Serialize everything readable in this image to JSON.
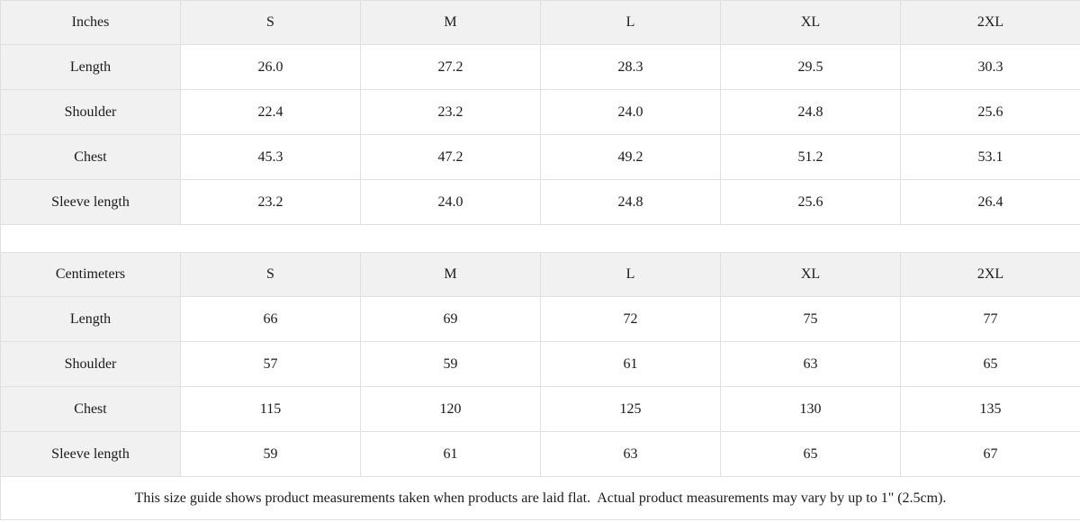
{
  "size_guide": {
    "tables": [
      {
        "unit_label": "Inches",
        "sizes": [
          "S",
          "M",
          "L",
          "XL",
          "2XL"
        ],
        "rows": [
          {
            "label": "Length",
            "values": [
              "26.0",
              "27.2",
              "28.3",
              "29.5",
              "30.3"
            ]
          },
          {
            "label": "Shoulder",
            "values": [
              "22.4",
              "23.2",
              "24.0",
              "24.8",
              "25.6"
            ]
          },
          {
            "label": "Chest",
            "values": [
              "45.3",
              "47.2",
              "49.2",
              "51.2",
              "53.1"
            ]
          },
          {
            "label": "Sleeve length",
            "values": [
              "23.2",
              "24.0",
              "24.8",
              "25.6",
              "26.4"
            ]
          }
        ]
      },
      {
        "unit_label": "Centimeters",
        "sizes": [
          "S",
          "M",
          "L",
          "XL",
          "2XL"
        ],
        "rows": [
          {
            "label": "Length",
            "values": [
              "66",
              "69",
              "72",
              "75",
              "77"
            ]
          },
          {
            "label": "Shoulder",
            "values": [
              "57",
              "59",
              "61",
              "63",
              "65"
            ]
          },
          {
            "label": "Chest",
            "values": [
              "115",
              "120",
              "125",
              "130",
              "135"
            ]
          },
          {
            "label": "Sleeve length",
            "values": [
              "59",
              "61",
              "63",
              "65",
              "67"
            ]
          }
        ]
      }
    ],
    "note": "This size guide shows product measurements taken when products are laid flat.  Actual product measurements may vary by up to 1\" (2.5cm).",
    "colors": {
      "header_bg": "#f1f1f1",
      "border": "#e0e0e0",
      "text": "#1a1a1a"
    }
  }
}
